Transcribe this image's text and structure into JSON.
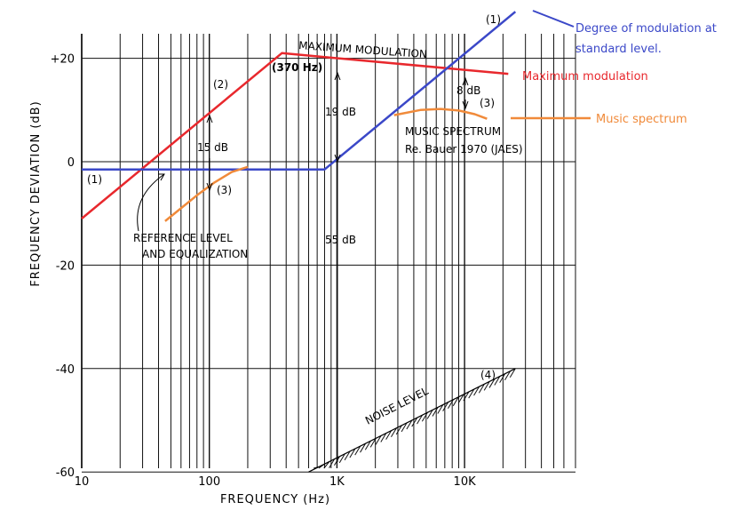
{
  "chart_data": {
    "type": "line",
    "xscale": "log",
    "xlim": [
      10,
      60000
    ],
    "ylim": [
      -61,
      27
    ],
    "xlabel": "FREQUENCY (Hz)",
    "ylabel": "FREQUENCY DEVIATION (dB)",
    "xticks": [
      {
        "x": 10,
        "label": "10"
      },
      {
        "x": 100,
        "label": "100"
      },
      {
        "x": 1000,
        "label": "1K"
      },
      {
        "x": 10000,
        "label": "10K"
      }
    ],
    "yticks": [
      {
        "y": 20,
        "label": "+20"
      },
      {
        "y": 0,
        "label": "0"
      },
      {
        "y": -20,
        "label": "-20"
      },
      {
        "y": -40,
        "label": "-40"
      },
      {
        "y": -60,
        "label": "-60"
      }
    ],
    "grid": true,
    "series": [
      {
        "name": "Maximum modulation",
        "color": "#e8282d",
        "x": [
          10,
          370,
          22000
        ],
        "y": [
          -11,
          21,
          17
        ]
      },
      {
        "name": "Degree of modulation at standard level.",
        "color": "#3b48c8",
        "x": [
          10,
          800,
          25000
        ],
        "y": [
          -1.5,
          -1.5,
          29
        ]
      },
      {
        "name": "Music spectrum",
        "color": "#f08a3a",
        "x": [
          2800,
          4500,
          6500,
          9000,
          12000,
          15000
        ],
        "y": [
          9,
          10,
          10.2,
          9.9,
          9.2,
          8.3
        ]
      },
      {
        "name": "Reference level and equalization",
        "color": "#f08a3a",
        "x": [
          45,
          60,
          80,
          110,
          150,
          200
        ],
        "y": [
          -11.5,
          -9,
          -6.5,
          -4,
          -2,
          -1
        ]
      },
      {
        "name": "Noise level",
        "color": "#000000",
        "x": [
          600,
          25000
        ],
        "y": [
          -60,
          -40
        ]
      }
    ]
  },
  "labels": {
    "max_mod_title": "MAXIMUM  MODULATION",
    "hz370": "(370 Hz)",
    "curve1": "(1)",
    "curve2": "(2)",
    "curve3": "(3)",
    "curve4": "(4)",
    "db15": "15 dB",
    "db19": "19 dB",
    "db55": "55 dB",
    "db8": "8 dB",
    "ref_level_1": "REFERENCE  LEVEL",
    "ref_level_2": "AND  EQUALIZATION",
    "music_1": "MUSIC  SPECTRUM",
    "music_2": "Re.  Bauer  1970 (JAES)",
    "noise": "NOISE  LEVEL"
  },
  "legend": {
    "blue_1": "Degree of modulation at",
    "blue_2": "standard level.",
    "red": "Maximum modulation",
    "orange": "Music spectrum",
    "blue_color": "#3b48c8",
    "red_color": "#e8282d",
    "orange_color": "#f08a3a"
  }
}
